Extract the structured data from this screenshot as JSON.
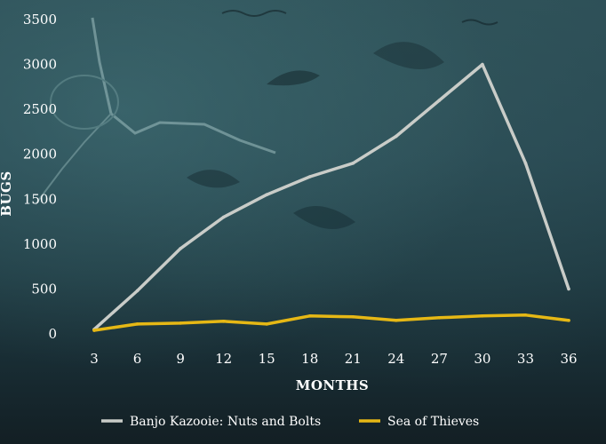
{
  "chart_data": {
    "type": "line",
    "title": "",
    "xlabel": "MONTHS",
    "ylabel": "BUGS",
    "x": [
      3,
      6,
      9,
      12,
      15,
      18,
      21,
      24,
      27,
      30,
      33,
      36
    ],
    "ylim": [
      0,
      3500
    ],
    "yticks": [
      0,
      500,
      1000,
      1500,
      2000,
      2500,
      3000,
      3500
    ],
    "grid": false,
    "legend_position": "bottom",
    "series": [
      {
        "name": "Banjo Kazooie: Nuts and Bolts",
        "color": "#c9ccc8",
        "values": [
          50,
          480,
          950,
          1300,
          1550,
          1750,
          1900,
          2200,
          2600,
          3000,
          1900,
          500
        ]
      },
      {
        "name": "Sea of Thieves",
        "color": "#e6b815",
        "values": [
          40,
          110,
          120,
          140,
          110,
          200,
          190,
          150,
          180,
          200,
          210,
          150
        ]
      }
    ]
  }
}
